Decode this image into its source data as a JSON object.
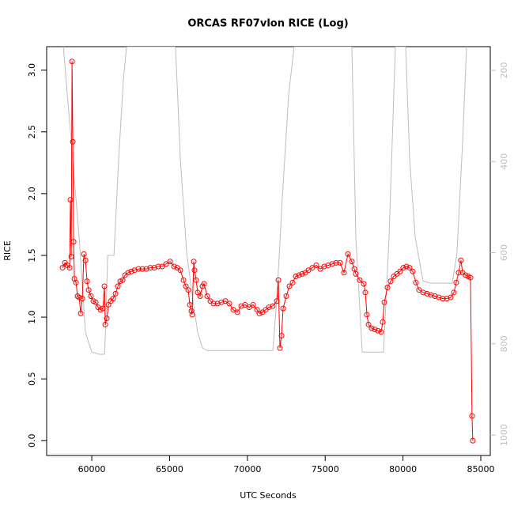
{
  "chart_data": {
    "type": "line",
    "title": "ORCAS RF07vlon RICE (Log)",
    "x_label": "UTC Seconds",
    "y_label": "RICE",
    "xlim": [
      57100,
      85610
    ],
    "ylim": [
      -0.12,
      3.19
    ],
    "y2lim": [
      1045,
      148
    ],
    "xticks": [
      60000,
      65000,
      70000,
      75000,
      80000,
      85000
    ],
    "yticks": [
      {
        "value": 0,
        "label": "0.0"
      },
      {
        "value": 0.5,
        "label": "0.5"
      },
      {
        "value": 1,
        "label": "1.0"
      },
      {
        "value": 1.5,
        "label": "1.5"
      },
      {
        "value": 2,
        "label": "2.0"
      },
      {
        "value": 2.5,
        "label": "2.5"
      },
      {
        "value": 3,
        "label": "3.0"
      }
    ],
    "y2ticks": [
      200,
      400,
      600,
      800,
      1000
    ],
    "y2tick_color": "#bebebe",
    "series": [
      {
        "color": "#ff0000",
        "markers": true,
        "x": [
          58120,
          58272,
          58425,
          58577,
          58628,
          58679,
          58730,
          58781,
          58831,
          58882,
          58984,
          59085,
          59187,
          59289,
          59390,
          59492,
          59594,
          59695,
          59797,
          59949,
          60102,
          60254,
          60406,
          60559,
          60711,
          60813,
          60864,
          60965,
          61067,
          61219,
          61372,
          61524,
          61677,
          61829,
          61982,
          62134,
          62337,
          62541,
          62744,
          62998,
          63252,
          63506,
          63760,
          64014,
          64268,
          64522,
          64776,
          65030,
          65284,
          65487,
          65691,
          65894,
          66046,
          66199,
          66301,
          66402,
          66453,
          66555,
          66605,
          66707,
          66809,
          66961,
          67114,
          67216,
          67419,
          67622,
          67825,
          68079,
          68333,
          68587,
          68841,
          69095,
          69349,
          69603,
          69857,
          70111,
          70365,
          70619,
          70772,
          70975,
          71178,
          71381,
          71636,
          71890,
          71992,
          72093,
          72195,
          72296,
          72499,
          72703,
          72906,
          73109,
          73312,
          73516,
          73719,
          73922,
          74176,
          74430,
          74684,
          74938,
          75193,
          75447,
          75701,
          75955,
          76209,
          76463,
          76717,
          76870,
          76971,
          77225,
          77479,
          77581,
          77682,
          77784,
          77987,
          78190,
          78393,
          78597,
          78698,
          78800,
          79003,
          79206,
          79409,
          79613,
          79816,
          80019,
          80222,
          80425,
          80628,
          80832,
          81035,
          81289,
          81543,
          81797,
          82051,
          82305,
          82559,
          82813,
          83067,
          83270,
          83422,
          83575,
          83727,
          83829,
          84032,
          84184,
          84337,
          84438,
          84489
        ],
        "values": [
          1.4,
          1.44,
          1.42,
          1.4,
          1.95,
          1.49,
          3.07,
          2.42,
          1.61,
          1.31,
          1.28,
          1.17,
          1.16,
          1.03,
          1.15,
          1.51,
          1.46,
          1.29,
          1.22,
          1.17,
          1.13,
          1.12,
          1.08,
          1.06,
          1.07,
          1.25,
          0.94,
          0.99,
          1.1,
          1.13,
          1.15,
          1.19,
          1.25,
          1.29,
          1.3,
          1.34,
          1.36,
          1.37,
          1.38,
          1.39,
          1.39,
          1.39,
          1.4,
          1.4,
          1.41,
          1.41,
          1.43,
          1.45,
          1.41,
          1.4,
          1.38,
          1.3,
          1.25,
          1.22,
          1.1,
          1.05,
          1.02,
          1.45,
          1.38,
          1.3,
          1.2,
          1.17,
          1.25,
          1.27,
          1.17,
          1.13,
          1.11,
          1.11,
          1.12,
          1.13,
          1.11,
          1.06,
          1.04,
          1.09,
          1.1,
          1.08,
          1.1,
          1.06,
          1.03,
          1.04,
          1.06,
          1.08,
          1.09,
          1.13,
          1.3,
          0.75,
          0.85,
          1.07,
          1.17,
          1.25,
          1.28,
          1.33,
          1.34,
          1.35,
          1.36,
          1.38,
          1.4,
          1.42,
          1.39,
          1.41,
          1.42,
          1.43,
          1.44,
          1.44,
          1.36,
          1.51,
          1.45,
          1.39,
          1.35,
          1.3,
          1.27,
          1.2,
          1.02,
          0.94,
          0.91,
          0.9,
          0.89,
          0.88,
          0.96,
          1.12,
          1.24,
          1.29,
          1.33,
          1.35,
          1.37,
          1.4,
          1.41,
          1.4,
          1.37,
          1.28,
          1.22,
          1.2,
          1.19,
          1.18,
          1.17,
          1.16,
          1.15,
          1.15,
          1.16,
          1.2,
          1.28,
          1.36,
          1.46,
          1.36,
          1.34,
          1.33,
          1.32,
          0.2,
          0.0
        ]
      },
      {
        "color": "#bebebe",
        "axis": "y2",
        "x": [
          58171,
          59187,
          59594,
          60000,
          60457,
          60813,
          60915,
          61016,
          61423,
          61728,
          62033,
          62236,
          65386,
          65691,
          66098,
          66504,
          66809,
          67114,
          67419,
          71636,
          71890,
          72245,
          72652,
          73008,
          76717,
          76971,
          77377,
          78749,
          79104,
          79510,
          80171,
          80425,
          80781,
          81289,
          81797,
          83168,
          83473,
          83829,
          84083
        ],
        "values": [
          148,
          566,
          775,
          818,
          823,
          823,
          740,
          606,
          606,
          393,
          219,
          148,
          148,
          393,
          601,
          705,
          775,
          809,
          815,
          815,
          705,
          480,
          254,
          148,
          148,
          566,
          818,
          818,
          566,
          148,
          148,
          393,
          566,
          662,
          667,
          667,
          601,
          358,
          148
        ]
      }
    ]
  }
}
